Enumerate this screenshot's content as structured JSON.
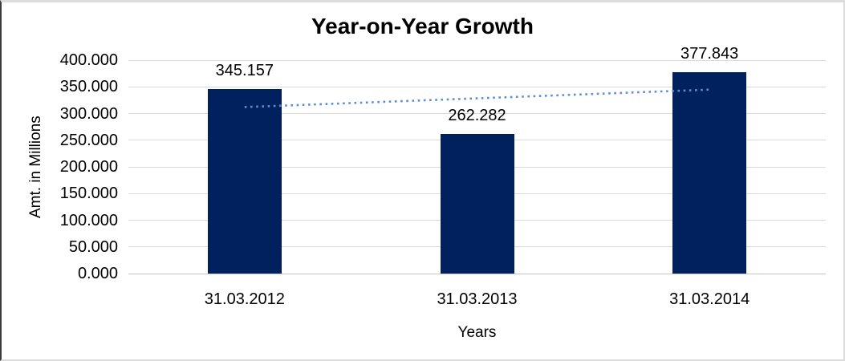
{
  "chart_data": {
    "type": "bar",
    "title": "Year-on-Year Growth",
    "xlabel": "Years",
    "ylabel": "Amt. in Millions",
    "categories": [
      "31.03.2012",
      "31.03.2013",
      "31.03.2014"
    ],
    "values": [
      345.157,
      262.282,
      377.843
    ],
    "value_labels": [
      "345.157",
      "262.282",
      "377.843"
    ],
    "ylim": [
      0,
      400
    ],
    "ytick_step": 50,
    "ytick_labels": [
      "0.000",
      "50.000",
      "100.000",
      "150.000",
      "200.000",
      "250.000",
      "300.000",
      "350.000",
      "400.000"
    ],
    "grid": true,
    "legend": "none",
    "bar_color": "#01215e",
    "gridline_color": "#d9d9d9",
    "trendline": {
      "type": "linear",
      "style": "dotted",
      "color": "#5b8fd1",
      "start_value": 312.1,
      "end_value": 344.8
    }
  }
}
